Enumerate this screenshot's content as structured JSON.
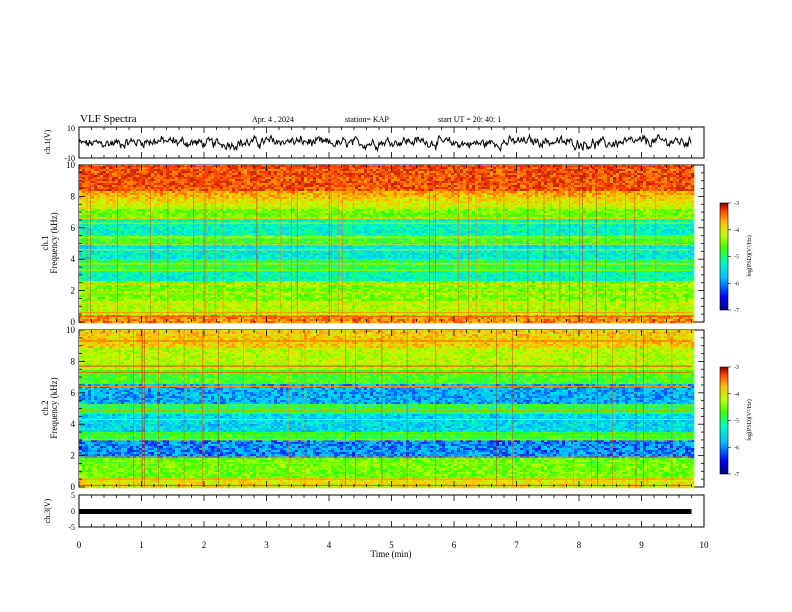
{
  "header": {
    "title": "VLF Spectra",
    "date": "Apr. 4 , 2024",
    "station": "station= KAP",
    "start": "start UT = 20: 40: 1"
  },
  "chart_data": [
    {
      "type": "line",
      "ylabel": "ch.1(V)",
      "ylim": [
        -10,
        10
      ],
      "ytick_labels": [
        "10",
        "-10"
      ],
      "xlim": [
        0,
        10
      ]
    },
    {
      "type": "heatmap",
      "ylabel_line1": "ch.1",
      "ylabel_line2": "Frequency (kHz)",
      "ylim": [
        0,
        10
      ],
      "yticks": [
        "0",
        "2",
        "4",
        "6",
        "8",
        "10"
      ],
      "xlim": [
        0,
        10
      ],
      "data_extent_min": 9.8,
      "colorbar": {
        "label": "log(PSD)(V²/Hz)",
        "range": [
          -7,
          -3
        ],
        "tick_labels": [
          "-3",
          "-4",
          "-5",
          "-6",
          "-7"
        ]
      }
    },
    {
      "type": "heatmap",
      "ylabel_line1": "ch.2",
      "ylabel_line2": "Frequency (kHz)",
      "ylim": [
        0,
        10
      ],
      "yticks": [
        "0",
        "2",
        "4",
        "6",
        "8",
        "10"
      ],
      "xlim": [
        0,
        10
      ],
      "data_extent_min": 9.8,
      "colorbar": {
        "label": "log(PSD)(V²/Hz)",
        "range": [
          -7,
          -3
        ],
        "tick_labels": [
          "-3",
          "-4",
          "-5",
          "-6",
          "-7"
        ]
      }
    },
    {
      "type": "line",
      "ylabel": "ch.3(V)",
      "ylim": [
        -5,
        5
      ],
      "ytick_labels": [
        "5",
        "0",
        "-5"
      ],
      "xlim": [
        0,
        10
      ],
      "series": [
        {
          "x": [
            0,
            9.8
          ],
          "y": [
            0,
            0
          ]
        }
      ]
    }
  ],
  "xaxis": {
    "label": "Time (min)",
    "ticks": [
      "0",
      "1",
      "2",
      "3",
      "4",
      "5",
      "6",
      "7",
      "8",
      "9",
      "10"
    ]
  },
  "colors": {
    "colormap": [
      "#00007f",
      "#0000ff",
      "#00bfff",
      "#00ffbf",
      "#3fff00",
      "#bfff00",
      "#ffbf00",
      "#ff3f00",
      "#7f0000"
    ]
  }
}
